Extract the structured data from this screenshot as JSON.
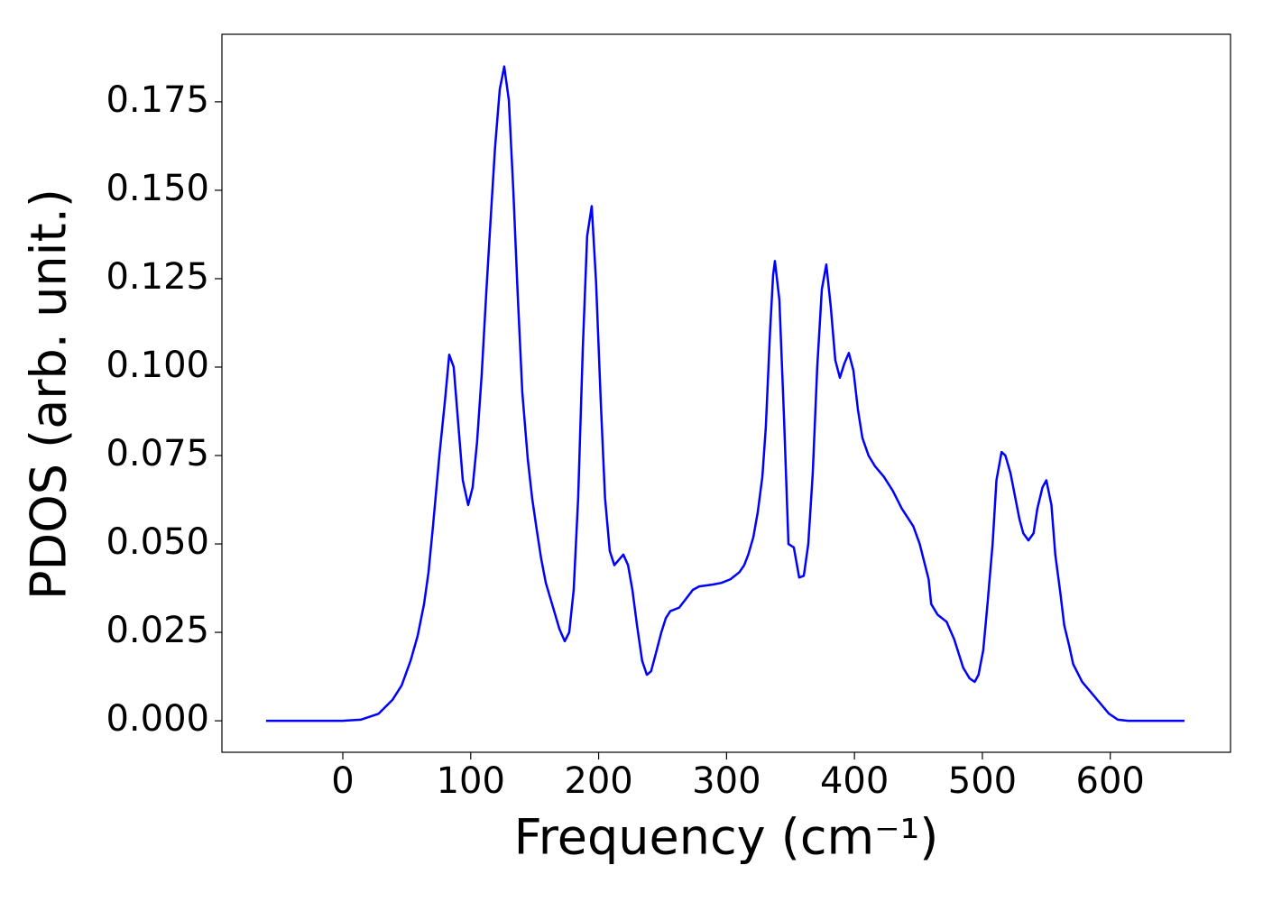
{
  "chart_data": {
    "type": "line",
    "xlabel": "Frequency (cm⁻¹)",
    "ylabel": "PDOS (arb. unit.)",
    "xlim": [
      -94.5,
      694
    ],
    "ylim": [
      -0.0089,
      0.1941
    ],
    "xticks": [
      0,
      100,
      200,
      300,
      400,
      500,
      600
    ],
    "yticks": [
      {
        "value": 0,
        "label": "0.000"
      },
      {
        "value": 0.025,
        "label": "0.025"
      },
      {
        "value": 0.05,
        "label": "0.050"
      },
      {
        "value": 0.075,
        "label": "0.075"
      },
      {
        "value": 0.1,
        "label": "0.100"
      },
      {
        "value": 0.125,
        "label": "0.125"
      },
      {
        "value": 0.15,
        "label": "0.150"
      },
      {
        "value": 0.175,
        "label": "0.175"
      }
    ],
    "series": [
      {
        "color": "#0000ff",
        "x": [
          -60,
          0,
          14,
          28,
          39,
          46,
          53,
          58.5,
          63.5,
          67,
          70.5,
          75.5,
          80,
          83.2,
          86.7,
          93.8,
          98,
          101.5,
          105,
          108.6,
          112,
          115.6,
          119,
          122.7,
          126.2,
          129.8,
          133.3,
          136.8,
          140.3,
          144.6,
          148,
          151.6,
          155,
          158.7,
          163.6,
          169.3,
          173.5,
          177,
          180.5,
          184,
          187.6,
          191,
          194.6,
          198,
          201.7,
          205,
          208.7,
          212.3,
          219.3,
          223,
          226.4,
          230,
          234,
          237.7,
          241,
          244.7,
          249,
          252.5,
          256,
          263,
          269.4,
          273.6,
          278.6,
          289,
          296,
          303,
          310,
          313.8,
          317,
          321,
          324.4,
          328,
          330.7,
          334,
          336.4,
          337.8,
          341.3,
          344.9,
          348.4,
          352.6,
          356.8,
          360.4,
          363.9,
          367.4,
          370.9,
          374.5,
          378,
          381.5,
          385,
          388.6,
          392.1,
          395.6,
          399.2,
          402.7,
          406.2,
          411,
          416,
          423,
          430,
          437,
          446,
          451,
          458,
          460,
          465,
          472,
          478,
          485,
          490,
          494,
          497,
          500.7,
          504,
          508,
          511,
          515,
          518,
          522,
          529,
          532,
          536,
          540,
          543,
          547,
          550,
          554,
          557,
          561,
          564,
          568,
          571,
          578,
          585,
          592,
          599,
          606,
          614,
          658
        ],
        "values": [
          0,
          0,
          0.0003,
          0.002,
          0.006,
          0.01,
          0.017,
          0.024,
          0.033,
          0.042,
          0.055,
          0.075,
          0.091,
          0.1035,
          0.1,
          0.068,
          0.061,
          0.066,
          0.079,
          0.098,
          0.12,
          0.142,
          0.162,
          0.1785,
          0.185,
          0.1755,
          0.15,
          0.12,
          0.093,
          0.074,
          0.063,
          0.054,
          0.046,
          0.039,
          0.033,
          0.026,
          0.0225,
          0.025,
          0.037,
          0.063,
          0.105,
          0.137,
          0.1455,
          0.124,
          0.09,
          0.063,
          0.048,
          0.044,
          0.047,
          0.044,
          0.037,
          0.027,
          0.017,
          0.013,
          0.014,
          0.019,
          0.025,
          0.029,
          0.031,
          0.032,
          0.035,
          0.037,
          0.038,
          0.0385,
          0.039,
          0.04,
          0.042,
          0.044,
          0.047,
          0.052,
          0.059,
          0.069,
          0.083,
          0.11,
          0.126,
          0.13,
          0.119,
          0.086,
          0.05,
          0.049,
          0.0405,
          0.041,
          0.05,
          0.07,
          0.1,
          0.122,
          0.129,
          0.117,
          0.102,
          0.097,
          0.101,
          0.104,
          0.099,
          0.088,
          0.08,
          0.075,
          0.072,
          0.069,
          0.065,
          0.06,
          0.055,
          0.05,
          0.04,
          0.033,
          0.03,
          0.028,
          0.023,
          0.015,
          0.012,
          0.011,
          0.013,
          0.02,
          0.033,
          0.05,
          0.068,
          0.076,
          0.075,
          0.07,
          0.057,
          0.053,
          0.051,
          0.053,
          0.06,
          0.066,
          0.068,
          0.061,
          0.047,
          0.036,
          0.027,
          0.021,
          0.016,
          0.011,
          0.008,
          0.005,
          0.002,
          0.0003,
          0,
          0
        ]
      }
    ]
  }
}
